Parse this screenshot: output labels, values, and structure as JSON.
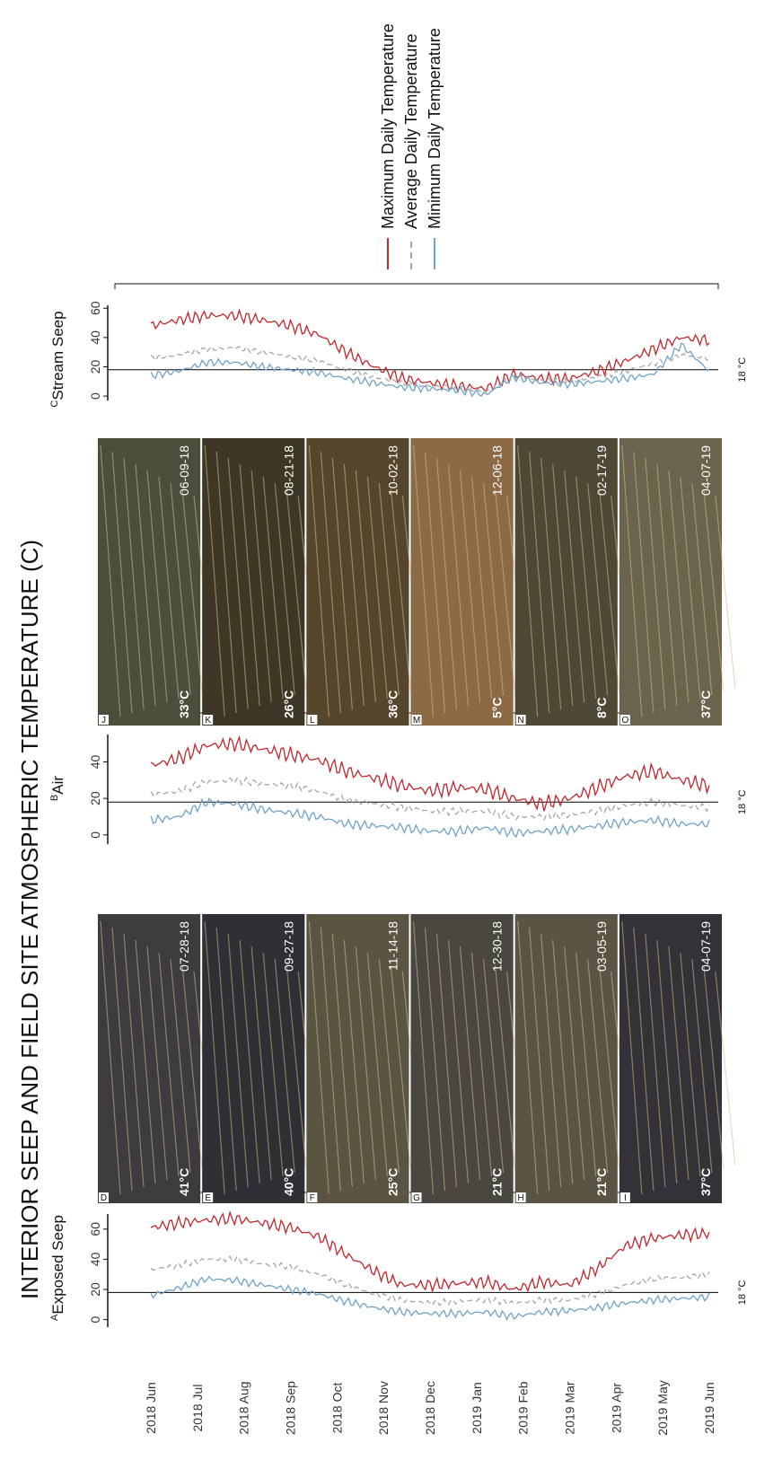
{
  "title": "INTERIOR SEEP AND FIELD SITE ATMOSPHERIC TEMPERATURE (C)",
  "legend": [
    {
      "label": "Maximum Daily Temperature",
      "color": "#c0272d",
      "dash": "solid"
    },
    {
      "label": "Average Daily Temperature",
      "color": "#a6a6a6",
      "dash": "dashed"
    },
    {
      "label": "Minimum Daily Temperature",
      "color": "#6fa3c7",
      "dash": "solid"
    }
  ],
  "time_axis": {
    "labels": [
      "2018 Jun",
      "2018 Jul",
      "2018 Aug",
      "2018 Sep",
      "2018 Oct",
      "2018 Nov",
      "2018 Dec",
      "2019 Jan",
      "2019 Feb",
      "2019 Mar",
      "2019 Apr",
      "2019 May",
      "2019 Jun"
    ]
  },
  "photos_exposed": [
    {
      "letter": "D",
      "date": "07-28-18",
      "temp": "41°C"
    },
    {
      "letter": "E",
      "date": "09-27-18",
      "temp": "40°C"
    },
    {
      "letter": "F",
      "date": "11-14-18",
      "temp": "25°C"
    },
    {
      "letter": "G",
      "date": "12-30-18",
      "temp": "21°C"
    },
    {
      "letter": "H",
      "date": "03-05-19",
      "temp": "21°C"
    },
    {
      "letter": "I",
      "date": "04-07-19",
      "temp": "37°C"
    }
  ],
  "photos_stream": [
    {
      "letter": "J",
      "date": "06-09-18",
      "temp": "33°C"
    },
    {
      "letter": "K",
      "date": "08-21-18",
      "temp": "26°C"
    },
    {
      "letter": "L",
      "date": "10-02-18",
      "temp": "36°C"
    },
    {
      "letter": "M",
      "date": "12-06-18",
      "temp": "5°C"
    },
    {
      "letter": "N",
      "date": "02-17-19",
      "temp": "8°C"
    },
    {
      "letter": "O",
      "date": "04-07-19",
      "temp": "37°C"
    }
  ],
  "colors": {
    "max": "#c0272d",
    "avg": "#a6a6a6",
    "min": "#6fa3c7",
    "reference_line": "#000000"
  },
  "chart_data": [
    {
      "type": "line",
      "panel": "A",
      "title": "Exposed  Seep",
      "reference": {
        "value": 18,
        "label": "18 °C"
      },
      "ylim": [
        -5,
        70
      ],
      "yticks": [
        0,
        20,
        40,
        60
      ],
      "month_axis": true,
      "series": [
        {
          "name": "Maximum Daily Temperature",
          "values": [
            61,
            64,
            66,
            67,
            64,
            61,
            55,
            43,
            32,
            23,
            23,
            24,
            25,
            20,
            25,
            23,
            34,
            49,
            54,
            56,
            57
          ]
        },
        {
          "name": "Average Daily Temperature",
          "values": [
            33,
            36,
            40,
            40,
            37,
            35,
            30,
            23,
            17,
            13,
            11,
            12,
            13,
            11,
            13,
            13,
            17,
            23,
            27,
            28,
            30
          ]
        },
        {
          "name": "Minimum Daily Temperature",
          "values": [
            16,
            21,
            27,
            26,
            23,
            20,
            17,
            12,
            8,
            5,
            4,
            4,
            5,
            2,
            5,
            6,
            8,
            11,
            13,
            14,
            15
          ]
        }
      ]
    },
    {
      "type": "line",
      "panel": "B",
      "title": "Air",
      "reference": {
        "value": 18,
        "label": "18 °C"
      },
      "ylim": [
        -5,
        55
      ],
      "yticks": [
        0,
        20,
        40
      ],
      "month_axis": false,
      "series": [
        {
          "name": "Maximum Daily Temperature",
          "values": [
            38,
            42,
            49,
            50,
            47,
            44,
            41,
            35,
            31,
            27,
            24,
            26,
            25,
            20,
            17,
            20,
            26,
            32,
            35,
            30,
            27
          ]
        },
        {
          "name": "Average Daily Temperature",
          "values": [
            22,
            24,
            29,
            30,
            28,
            27,
            24,
            19,
            17,
            15,
            13,
            13,
            13,
            10,
            10,
            11,
            13,
            16,
            18,
            16,
            15
          ]
        },
        {
          "name": "Minimum Daily Temperature",
          "values": [
            8,
            10,
            18,
            17,
            14,
            12,
            10,
            6,
            5,
            4,
            2,
            2,
            4,
            1,
            2,
            3,
            5,
            7,
            8,
            6,
            6
          ]
        }
      ]
    },
    {
      "type": "line",
      "panel": "C",
      "title": "Stream Seep",
      "reference": {
        "value": 18,
        "label": "18 °C"
      },
      "ylim": [
        -3,
        62
      ],
      "yticks": [
        0,
        20,
        40,
        60
      ],
      "month_axis": false,
      "series": [
        {
          "name": "Maximum Daily Temperature",
          "values": [
            48,
            52,
            55,
            55,
            52,
            48,
            42,
            30,
            20,
            12,
            9,
            7,
            5,
            15,
            12,
            12,
            17,
            24,
            32,
            40,
            38
          ]
        },
        {
          "name": "Average Daily Temperature",
          "values": [
            26,
            28,
            32,
            33,
            30,
            27,
            24,
            18,
            13,
            9,
            7,
            6,
            3,
            14,
            11,
            10,
            13,
            17,
            22,
            28,
            26
          ]
        },
        {
          "name": "Minimum Daily Temperature",
          "values": [
            14,
            17,
            23,
            23,
            20,
            18,
            16,
            12,
            9,
            6,
            5,
            4,
            1,
            13,
            9,
            8,
            10,
            12,
            15,
            35,
            17
          ]
        }
      ]
    }
  ]
}
